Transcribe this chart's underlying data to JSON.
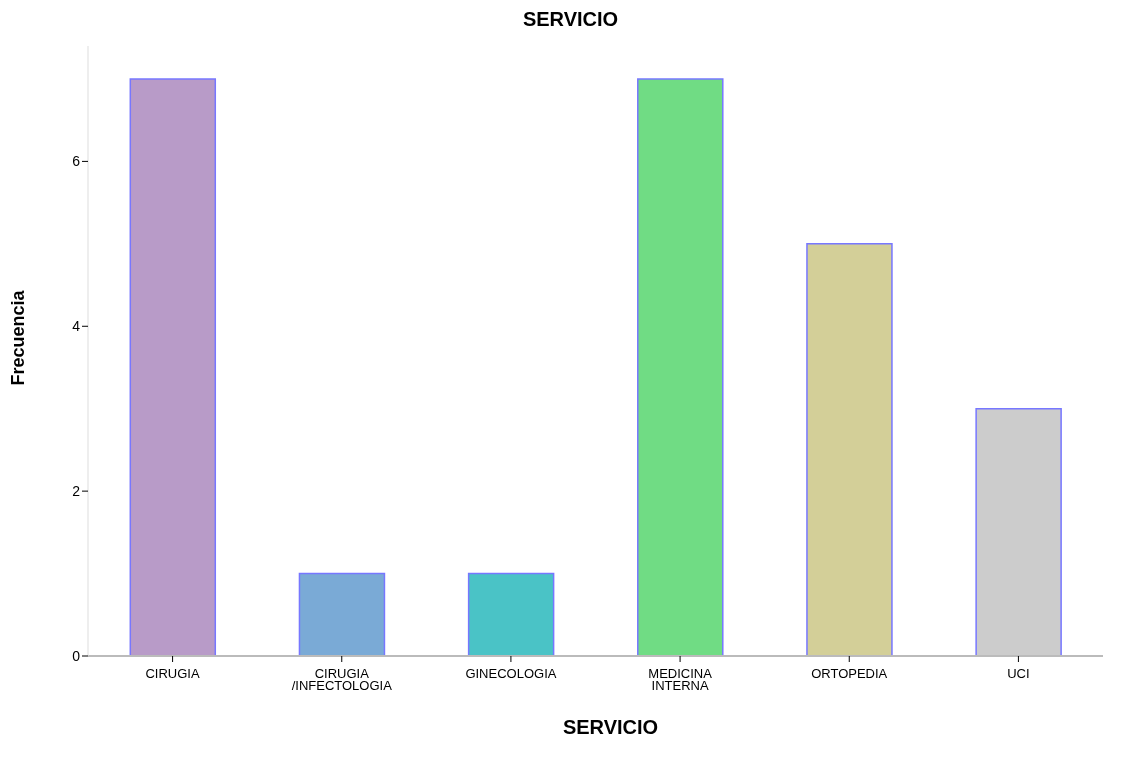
{
  "chart_data": {
    "type": "bar",
    "title": "SERVICIO",
    "xlabel": "SERVICIO",
    "ylabel": "Frecuencia",
    "categories": [
      "CIRUGIA",
      "CIRUGIA /INFECTOLOGIA",
      "GINECOLOGIA",
      "MEDICINA INTERNA",
      "ORTOPEDIA",
      "UCI"
    ],
    "values": [
      7,
      1,
      1,
      7,
      5,
      3
    ],
    "colors": [
      "#b89bc8",
      "#7aaad6",
      "#4ac3c6",
      "#70dc84",
      "#d3cf98",
      "#cccccc"
    ],
    "ylim": [
      0,
      7.4
    ],
    "yticks": [
      0,
      2,
      4,
      6
    ],
    "grid": false,
    "legend": false
  }
}
